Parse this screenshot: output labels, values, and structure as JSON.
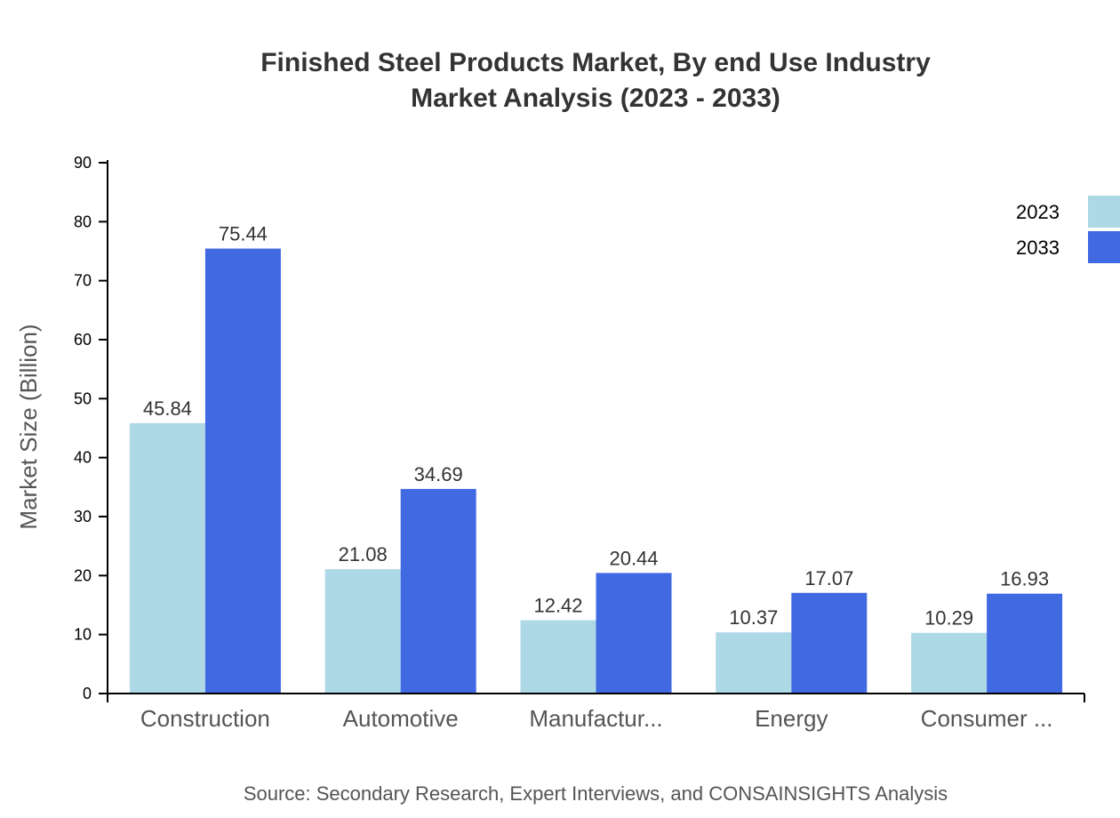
{
  "chart_data": {
    "type": "bar",
    "title": [
      "Finished Steel Products Market, By end Use Industry",
      "Market Analysis (2023 - 2033)"
    ],
    "xlabel": "",
    "ylabel": "Market Size (Billion)",
    "ylim": [
      0,
      90
    ],
    "yticks": [
      0,
      10,
      20,
      30,
      40,
      50,
      60,
      70,
      80,
      90
    ],
    "grid": false,
    "legend_position": "top-right",
    "categories": [
      "Construction",
      "Automotive",
      "Manufactur...",
      "Energy",
      "Consumer ..."
    ],
    "series": [
      {
        "name": "2023",
        "color": "#add8e6",
        "values": [
          45.84,
          21.08,
          12.42,
          10.37,
          10.29
        ]
      },
      {
        "name": "2033",
        "color": "#4169e1",
        "values": [
          75.44,
          34.69,
          20.44,
          17.07,
          16.93
        ]
      }
    ],
    "source": "Source: Secondary Research, Expert Interviews, and CONSAINSIGHTS Analysis"
  }
}
